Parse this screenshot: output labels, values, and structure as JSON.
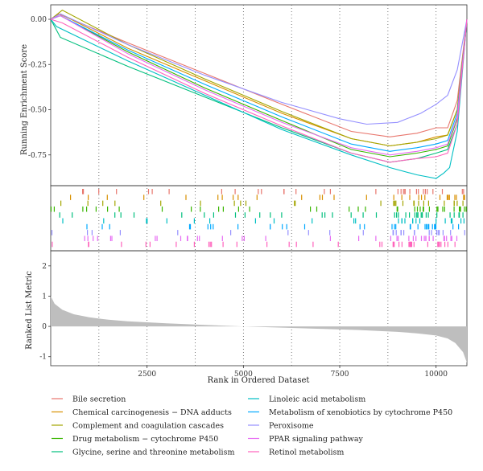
{
  "chart_data": {
    "type": "line",
    "title": "",
    "xlabel": "Rank in Ordered Dataset",
    "x_ticks": [
      "2500",
      "5000",
      "7500",
      "10000"
    ],
    "xlim": [
      0,
      10800
    ],
    "panels": {
      "enrichment": {
        "ylabel": "Running Enrichment Score",
        "ylim": [
          -0.92,
          0.08
        ],
        "y_ticks": [
          "0.00",
          "-0.25",
          "-0.50",
          "-0.75"
        ],
        "grid_x": [
          1250,
          2500,
          3750,
          5000,
          6250,
          7500,
          8750,
          10000
        ]
      },
      "metric": {
        "ylabel": "Ranked List Metric",
        "ylim": [
          -1.3,
          2.5
        ],
        "y_ticks": [
          "2",
          "1",
          "0",
          "-1"
        ]
      }
    },
    "legend": {
      "placement": "bottom",
      "columns": 2
    },
    "series": [
      {
        "name": "Bile secretion",
        "color": "#E8766D",
        "x": [
          0,
          200,
          2000,
          4000,
          6000,
          7800,
          8800,
          9500,
          10000,
          10300,
          10550,
          10800
        ],
        "y": [
          0.0,
          0.03,
          -0.13,
          -0.3,
          -0.47,
          -0.62,
          -0.65,
          -0.63,
          -0.6,
          -0.6,
          -0.45,
          0.0
        ]
      },
      {
        "name": "Chemical carcinogenesis − DNA adducts",
        "color": "#D89000",
        "x": [
          0,
          250,
          2000,
          4000,
          6000,
          7800,
          8800,
          9500,
          10000,
          10300,
          10550,
          10800
        ],
        "y": [
          0.0,
          0.03,
          -0.16,
          -0.34,
          -0.52,
          -0.66,
          -0.7,
          -0.68,
          -0.65,
          -0.64,
          -0.5,
          0.0
        ]
      },
      {
        "name": "Complement and coagulation cascades",
        "color": "#A3A500",
        "x": [
          0,
          300,
          2000,
          4000,
          6000,
          7800,
          8800,
          9500,
          10000,
          10300,
          10550,
          10800
        ],
        "y": [
          0.0,
          0.05,
          -0.14,
          -0.33,
          -0.51,
          -0.66,
          -0.7,
          -0.68,
          -0.66,
          -0.64,
          -0.5,
          0.0
        ]
      },
      {
        "name": "Drug metabolism − cytochrome P450",
        "color": "#39B600",
        "x": [
          0,
          250,
          2000,
          4000,
          6000,
          7800,
          8800,
          9500,
          10000,
          10300,
          10550,
          10800
        ],
        "y": [
          0.0,
          0.02,
          -0.18,
          -0.38,
          -0.56,
          -0.72,
          -0.76,
          -0.74,
          -0.72,
          -0.7,
          -0.55,
          0.0
        ]
      },
      {
        "name": "Glycine, serine and threonine metabolism",
        "color": "#00BF7D",
        "x": [
          0,
          250,
          2000,
          4000,
          6000,
          7800,
          8800,
          9500,
          10000,
          10300,
          10550,
          10800
        ],
        "y": [
          0.0,
          -0.1,
          -0.26,
          -0.43,
          -0.6,
          -0.74,
          -0.79,
          -0.77,
          -0.74,
          -0.72,
          -0.58,
          0.0
        ]
      },
      {
        "name": "Linoleic acid metabolism",
        "color": "#00BFC4",
        "x": [
          0,
          150,
          2000,
          4000,
          6000,
          7800,
          8800,
          9500,
          10000,
          10200,
          10350,
          10550,
          10800
        ],
        "y": [
          0.0,
          -0.04,
          -0.23,
          -0.42,
          -0.61,
          -0.75,
          -0.82,
          -0.86,
          -0.88,
          -0.85,
          -0.82,
          -0.62,
          0.0
        ]
      },
      {
        "name": "Metabolism of xenobiotics by cytochrome P450",
        "color": "#00A9FF",
        "x": [
          0,
          250,
          2000,
          4000,
          6000,
          7800,
          8800,
          9500,
          10000,
          10300,
          10550,
          10800
        ],
        "y": [
          0.0,
          0.02,
          -0.17,
          -0.36,
          -0.54,
          -0.69,
          -0.73,
          -0.71,
          -0.69,
          -0.67,
          -0.52,
          0.0
        ]
      },
      {
        "name": "Peroxisome",
        "color": "#9590FF",
        "x": [
          0,
          250,
          2000,
          4000,
          6000,
          7500,
          8200,
          9000,
          9600,
          10000,
          10300,
          10550,
          10800
        ],
        "y": [
          0.0,
          0.03,
          -0.14,
          -0.31,
          -0.46,
          -0.55,
          -0.58,
          -0.57,
          -0.52,
          -0.47,
          -0.42,
          -0.28,
          0.0
        ]
      },
      {
        "name": "PPAR signaling pathway",
        "color": "#E76BF3",
        "x": [
          0,
          250,
          2000,
          4000,
          6000,
          7800,
          8800,
          9500,
          10000,
          10300,
          10550,
          10800
        ],
        "y": [
          0.0,
          0.02,
          -0.19,
          -0.39,
          -0.57,
          -0.71,
          -0.75,
          -0.73,
          -0.71,
          -0.69,
          -0.54,
          0.0
        ]
      },
      {
        "name": "Retinol metabolism",
        "color": "#FF62BC",
        "x": [
          0,
          300,
          2000,
          4000,
          6000,
          7800,
          8800,
          9500,
          10000,
          10300,
          10550,
          10800
        ],
        "y": [
          0.0,
          -0.02,
          -0.21,
          -0.41,
          -0.59,
          -0.74,
          -0.79,
          -0.77,
          -0.76,
          -0.74,
          -0.58,
          0.0
        ]
      }
    ],
    "ranked_metric": {
      "x": [
        0,
        100,
        300,
        600,
        1000,
        1500,
        2000,
        3000,
        4000,
        5000,
        6000,
        7000,
        8000,
        9000,
        9500,
        10000,
        10300,
        10500,
        10700,
        10800
      ],
      "y": [
        1.0,
        0.75,
        0.55,
        0.4,
        0.3,
        0.22,
        0.17,
        0.1,
        0.05,
        0.0,
        -0.04,
        -0.08,
        -0.12,
        -0.18,
        -0.23,
        -0.3,
        -0.4,
        -0.55,
        -0.85,
        -1.2
      ],
      "color": "#BEBEBE"
    }
  }
}
